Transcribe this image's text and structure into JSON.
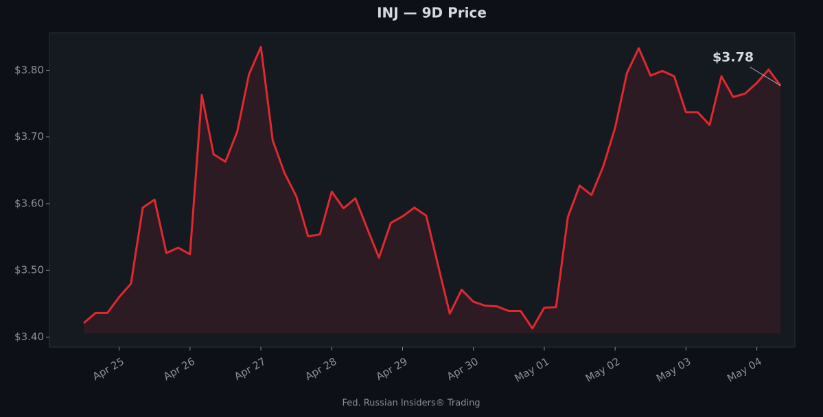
{
  "chart_data": {
    "type": "line",
    "title": "INJ — 9D Price",
    "footer": "Fed. Russian Insiders® Trading",
    "annotation": "$3.78",
    "categories": [
      null,
      null,
      null,
      "Apr 25",
      null,
      null,
      null,
      null,
      null,
      "Apr 26",
      null,
      null,
      null,
      null,
      null,
      "Apr 27",
      null,
      null,
      null,
      null,
      null,
      "Apr 28",
      null,
      null,
      null,
      null,
      null,
      "Apr 29",
      null,
      null,
      null,
      null,
      null,
      "Apr 30",
      null,
      null,
      null,
      null,
      null,
      "May 01",
      null,
      null,
      null,
      null,
      null,
      "May 02",
      null,
      null,
      null,
      null,
      null,
      "May 03",
      null,
      null,
      null,
      null,
      null,
      "May 04",
      null,
      null
    ],
    "series": [
      {
        "name": "INJ",
        "color": "#e0292f",
        "values": [
          3.421,
          3.436,
          3.436,
          3.46,
          3.48,
          3.594,
          3.606,
          3.526,
          3.534,
          3.524,
          3.763,
          3.674,
          3.663,
          3.708,
          3.794,
          3.835,
          3.695,
          3.646,
          3.611,
          3.551,
          3.554,
          3.618,
          3.593,
          3.608,
          3.563,
          3.519,
          3.571,
          3.581,
          3.594,
          3.582,
          3.508,
          3.435,
          3.471,
          3.453,
          3.447,
          3.446,
          3.439,
          3.439,
          3.413,
          3.444,
          3.445,
          3.58,
          3.627,
          3.613,
          3.656,
          3.714,
          3.796,
          3.833,
          3.792,
          3.799,
          3.791,
          3.737,
          3.737,
          3.718,
          3.791,
          3.76,
          3.765,
          3.781,
          3.801,
          3.777
        ]
      }
    ],
    "ylim": [
      3.385,
      3.856
    ],
    "yticks": [
      {
        "value": 3.4,
        "label": "$3.40"
      },
      {
        "value": 3.5,
        "label": "$3.50"
      },
      {
        "value": 3.6,
        "label": "$3.60"
      },
      {
        "value": 3.7,
        "label": "$3.70"
      },
      {
        "value": 3.8,
        "label": "$3.80"
      }
    ],
    "grid": false,
    "area_fill": true
  }
}
